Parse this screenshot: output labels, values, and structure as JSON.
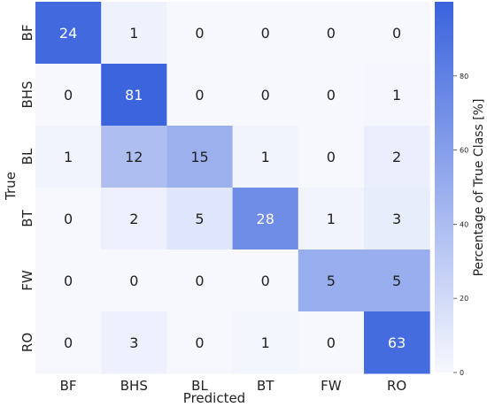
{
  "chart_data": {
    "type": "heatmap",
    "title": "",
    "xlabel": "Predicted",
    "ylabel": "True",
    "x_categories": [
      "BF",
      "BHS",
      "BL",
      "BT",
      "FW",
      "RO"
    ],
    "y_categories": [
      "BF",
      "BHS",
      "BL",
      "BT",
      "FW",
      "RO"
    ],
    "values": [
      [
        24,
        1,
        0,
        0,
        0,
        0
      ],
      [
        0,
        81,
        0,
        0,
        0,
        1
      ],
      [
        1,
        12,
        15,
        1,
        0,
        2
      ],
      [
        0,
        2,
        5,
        28,
        1,
        3
      ],
      [
        0,
        0,
        0,
        0,
        5,
        5
      ],
      [
        0,
        3,
        0,
        1,
        0,
        63
      ]
    ],
    "row_percent": [
      [
        96.0,
        4.0,
        0.0,
        0.0,
        0.0,
        0.0
      ],
      [
        0.0,
        98.8,
        0.0,
        0.0,
        0.0,
        1.2
      ],
      [
        3.2,
        38.7,
        48.4,
        3.2,
        0.0,
        6.5
      ],
      [
        0.0,
        5.1,
        12.8,
        71.8,
        2.6,
        7.7
      ],
      [
        0.0,
        0.0,
        0.0,
        0.0,
        50.0,
        50.0
      ],
      [
        0.0,
        4.5,
        0.0,
        1.5,
        0.0,
        94.0
      ]
    ],
    "colorbar": {
      "label": "Percentage of True Class [%]",
      "range": [
        0,
        100
      ],
      "ticks": [
        0,
        20,
        40,
        60,
        80
      ],
      "color_low": "#f7f8fe",
      "color_high": "#3a63dd"
    }
  }
}
